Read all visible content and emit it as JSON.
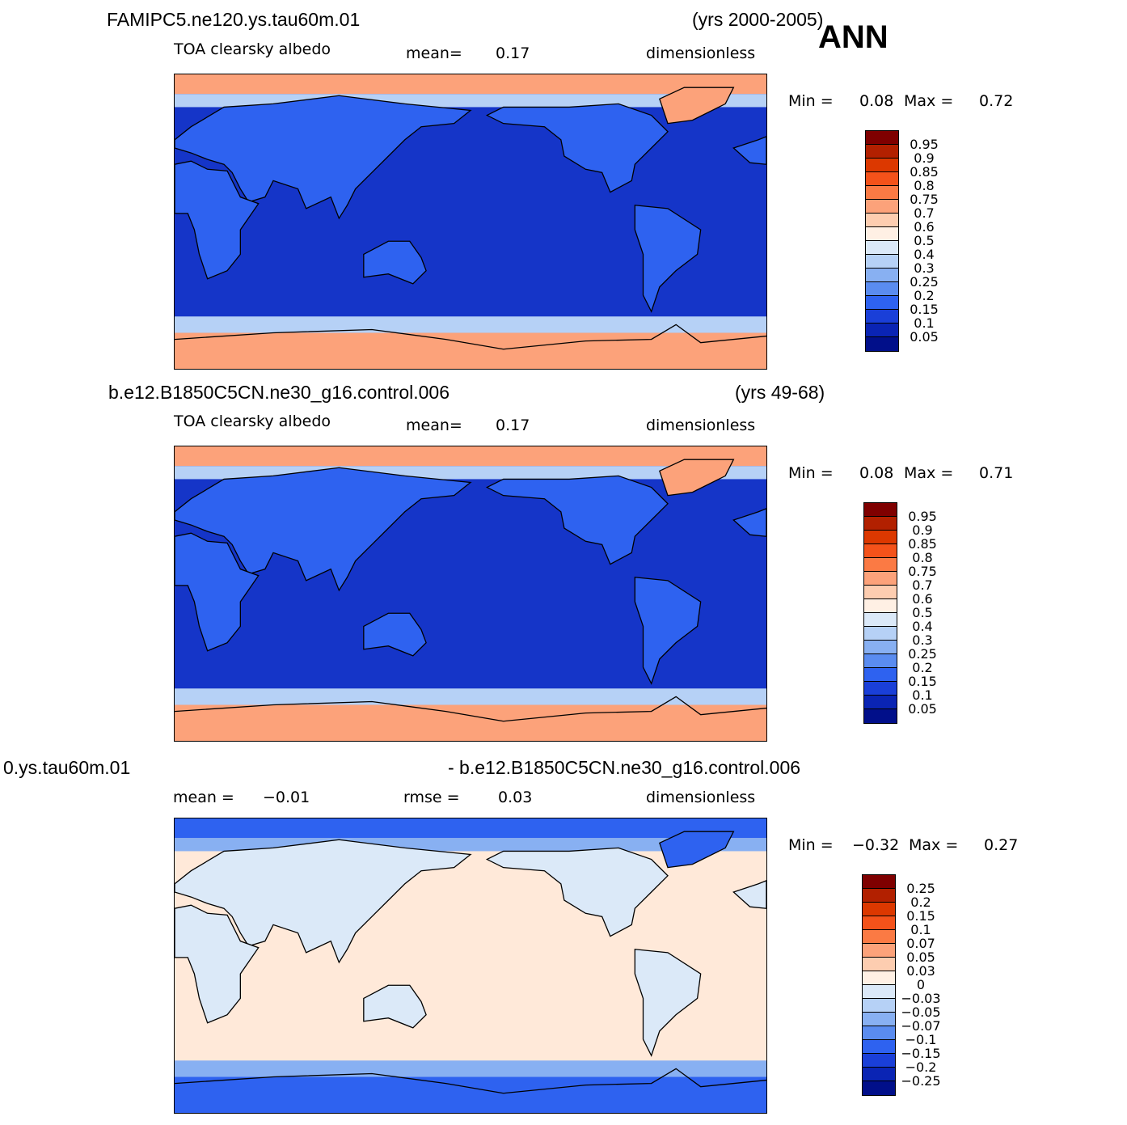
{
  "annotation": "ANN",
  "panels": [
    {
      "case": "FAMIPC5.ne120.ys.tau60m.01",
      "years": "(yrs 2000-2005)",
      "variable": "TOA clearsky albedo",
      "stat1_label": "mean=",
      "stat1_value": "0.17",
      "units": "dimensionless",
      "min_label": "Min  =",
      "min_value": "0.08",
      "max_label": "Max  =",
      "max_value": "0.72",
      "levels": [
        "0.95",
        "0.9",
        "0.85",
        "0.8",
        "0.75",
        "0.7",
        "0.6",
        "0.5",
        "0.4",
        "0.3",
        "0.25",
        "0.2",
        "0.15",
        "0.1",
        "0.05"
      ],
      "colors": [
        "#7f0000",
        "#b22000",
        "#dc3800",
        "#f4521a",
        "#fb7a44",
        "#fca27a",
        "#fdcdb0",
        "#fff0e4",
        "#dbe9f8",
        "#b6d1f6",
        "#88b0f2",
        "#5a8cf0",
        "#2e62f0",
        "#1a3fd8",
        "#0a24b4",
        "#010f8a"
      ],
      "map_colors": {
        "ocean": "#1535c8",
        "land": "#2e62f0",
        "polar": "#fca27a",
        "seaice": "#b6d1f6"
      }
    },
    {
      "case": "b.e12.B1850C5CN.ne30_g16.control.006",
      "years": "(yrs 49-68)",
      "variable": "TOA clearsky albedo",
      "stat1_label": "mean=",
      "stat1_value": "0.17",
      "units": "dimensionless",
      "min_label": "Min  =",
      "min_value": "0.08",
      "max_label": "Max  =",
      "max_value": "0.71",
      "levels": [
        "0.95",
        "0.9",
        "0.85",
        "0.8",
        "0.75",
        "0.7",
        "0.6",
        "0.5",
        "0.4",
        "0.3",
        "0.25",
        "0.2",
        "0.15",
        "0.1",
        "0.05"
      ],
      "colors": [
        "#7f0000",
        "#b22000",
        "#dc3800",
        "#f4521a",
        "#fb7a44",
        "#fca27a",
        "#fdcdb0",
        "#fff0e4",
        "#dbe9f8",
        "#b6d1f6",
        "#88b0f2",
        "#5a8cf0",
        "#2e62f0",
        "#1a3fd8",
        "#0a24b4",
        "#010f8a"
      ],
      "map_colors": {
        "ocean": "#1535c8",
        "land": "#2e62f0",
        "polar": "#fca27a",
        "seaice": "#b6d1f6"
      }
    },
    {
      "case_left": "0.ys.tau60m.01",
      "case_right": "- b.e12.B1850C5CN.ne30_g16.control.006",
      "stat1_label": "mean  =",
      "stat1_value": "−0.01",
      "stat2_label": "rmse  =",
      "stat2_value": "0.03",
      "units": "dimensionless",
      "min_label": "Min  =",
      "min_value": "−0.32",
      "max_label": "Max  =",
      "max_value": "0.27",
      "levels": [
        "0.25",
        "0.2",
        "0.15",
        "0.1",
        "0.07",
        "0.05",
        "0.03",
        "0",
        "−0.03",
        "−0.05",
        "−0.07",
        "−0.1",
        "−0.15",
        "−0.2",
        "−0.25"
      ],
      "colors": [
        "#7f0000",
        "#b22000",
        "#dc3800",
        "#f4521a",
        "#fb7a44",
        "#fca27a",
        "#fdcdb0",
        "#fff0e4",
        "#dbe9f8",
        "#b6d1f6",
        "#88b0f2",
        "#5a8cf0",
        "#2e62f0",
        "#1a3fd8",
        "#0a24b4",
        "#010f8a"
      ],
      "map_colors": {
        "ocean": "#ffe9d9",
        "land": "#dbe9f8",
        "polar": "#2e62f0",
        "seaice": "#88b0f2"
      }
    }
  ]
}
